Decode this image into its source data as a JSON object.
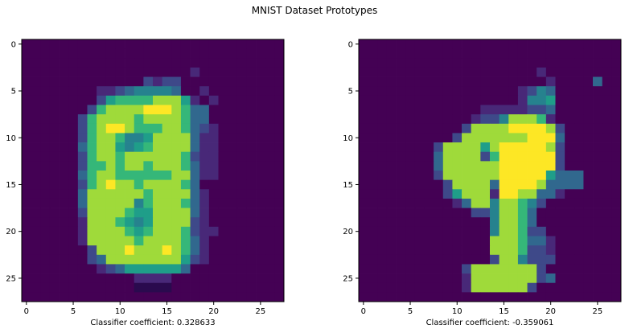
{
  "figure": {
    "title": "MNIST Dataset Prototypes"
  },
  "chart_data": [
    {
      "type": "heatmap",
      "colormap": "viridis",
      "grid": false,
      "xlabel": "Classifier coefficient: 0.328633",
      "ylabel": "",
      "rows": 28,
      "cols": 28,
      "xlim": [
        -0.5,
        27.5
      ],
      "ylim": [
        27.5,
        -0.5
      ],
      "xticks": [
        0,
        5,
        10,
        15,
        20,
        25
      ],
      "yticks": [
        0,
        5,
        10,
        15,
        20,
        25
      ],
      "value_range": [
        0,
        1
      ],
      "rows_data": [
        "1111111111111111111111111111",
        "1111111111111111111111111111",
        "1111111111111111111111111111",
        "1111111111111111112111111111",
        "1111111111111323311111111111",
        "1111111122345555411211111111",
        "1111111136777788862121111111",
        "1111111378888999874411111111",
        "1111113788887888874411111111",
        "1111113789987778874321111111",
        "1111113788755688884221111111",
        "1111114788656788884221111111",
        "1111113788788888873221111111",
        "1111113778788788874221111111",
        "1111114788777777884221111111",
        "1111113789887888874111111111",
        "1111114888888788884211111111",
        "1111114888885788874211111111",
        "1111113888876688884211111111",
        "1111112888765688883211111111",
        "1111112888876788873221111111",
        "1111112888887888874211111111",
        "1111111388898889874211111111",
        "1111111348888888863211111111",
        "1111111123466666641111111111",
        "1111111111112222111111111111",
        "1111111111110000111111111111",
        "1111111111111111111111111111"
      ]
    },
    {
      "type": "heatmap",
      "colormap": "viridis",
      "grid": false,
      "xlabel": "Classifier coefficient: -0.359061",
      "ylabel": "",
      "rows": 28,
      "cols": 28,
      "xlim": [
        -0.5,
        27.5
      ],
      "ylim": [
        27.5,
        -0.5
      ],
      "xticks": [
        0,
        5,
        10,
        15,
        20,
        25
      ],
      "yticks": [
        0,
        5,
        10,
        15,
        20,
        25
      ],
      "value_range": [
        0,
        1
      ],
      "rows_data": [
        "1111111111111111111111111111",
        "1111111111111111111111111111",
        "1111111111111111111111111111",
        "1111111111111111111211111111",
        "1111111111111111111121111411",
        "1111111111111111123541111111",
        "1111111111111111125561111111",
        "1111111111111222223341111111",
        "1111111111112335888721111111",
        "1111111111138888999983111111",
        "1111111111388888889994111111",
        "1111111138888689999983111111",
        "1111111148888379999993111111",
        "1111111148888889999993111111",
        "1111111138888889999964441111",
        "1111111113888849999844441111",
        "1111111113688829988442111111",
        "1111111111248858875311111111",
        "1111111111113358874111111111",
        "1111111111111158874111111111",
        "1111111111111158873311111111",
        "1111111111111188874421111111",
        "1111111111111188873321111111",
        "1111111111111138853331111111",
        "1111111111138888888311111111",
        "1111111111128888888341111111",
        "1111111111128888883111111111",
        "1111111111111111111111111111"
      ]
    }
  ]
}
